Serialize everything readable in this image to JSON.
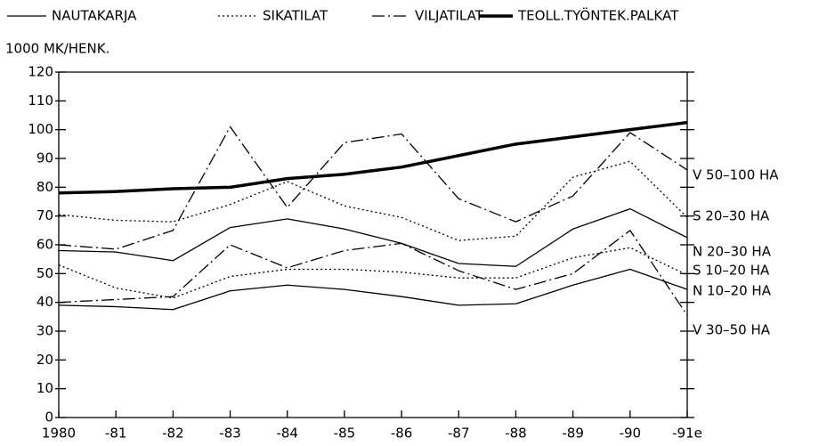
{
  "chart_data": {
    "type": "line",
    "y_label": "1000 MK/HENK.",
    "categories": [
      "1980",
      "-81",
      "-82",
      "-83",
      "-84",
      "-85",
      "-86",
      "-87",
      "-88",
      "-89",
      "-90",
      "-91e"
    ],
    "legend": [
      {
        "label": "NAUTAKARJA",
        "style": "solid"
      },
      {
        "label": "SIKATILAT",
        "style": "dotted"
      },
      {
        "label": "VILJATILAT",
        "style": "dashdot"
      },
      {
        "label": "TEOLL.TYÖNTEK.PALKAT",
        "style": "thick"
      }
    ],
    "series": [
      {
        "style": "thick",
        "color": "#000000",
        "values": [
          78,
          78.5,
          79.5,
          80,
          83,
          84.5,
          87,
          91,
          95,
          97.5,
          100,
          102.5
        ]
      },
      {
        "label": "V 50–100 HA",
        "style": "dashdot",
        "color": "#000000",
        "values": [
          60,
          58.5,
          65,
          101,
          73,
          95.5,
          98.5,
          76,
          68,
          77,
          99,
          86
        ]
      },
      {
        "label": "S 20–30 HA",
        "style": "dotted",
        "color": "#000000",
        "values": [
          70.5,
          68.5,
          68,
          74,
          82,
          73.5,
          69.5,
          61.5,
          63,
          83.5,
          89,
          69.5
        ]
      },
      {
        "label": "N 20–30 HA",
        "style": "solid",
        "color": "#000000",
        "values": [
          58,
          57.5,
          54.5,
          66,
          69,
          65.5,
          60.5,
          53.5,
          52.5,
          65.5,
          72.5,
          62.5
        ]
      },
      {
        "label": "S 10–20 HA",
        "style": "dotted",
        "color": "#000000",
        "values": [
          53,
          45,
          41.5,
          49,
          51.5,
          51.5,
          50.5,
          48.5,
          48.5,
          55.5,
          59,
          49.5
        ]
      },
      {
        "label": "N 10–20 HA",
        "style": "solid",
        "color": "#000000",
        "values": [
          39,
          38.5,
          37.5,
          44,
          46,
          44.5,
          42,
          39,
          39.5,
          46,
          51.5,
          44.5
        ]
      },
      {
        "label": "V 30–50 HA",
        "style": "dashdot",
        "color": "#000000",
        "values": [
          40,
          41,
          42,
          60,
          52,
          58,
          60.5,
          51,
          44.5,
          50,
          65,
          35.5
        ]
      }
    ],
    "ylim": [
      0,
      120
    ],
    "yticks": [
      0,
      10,
      20,
      30,
      40,
      50,
      60,
      70,
      80,
      90,
      100,
      110,
      120
    ]
  }
}
